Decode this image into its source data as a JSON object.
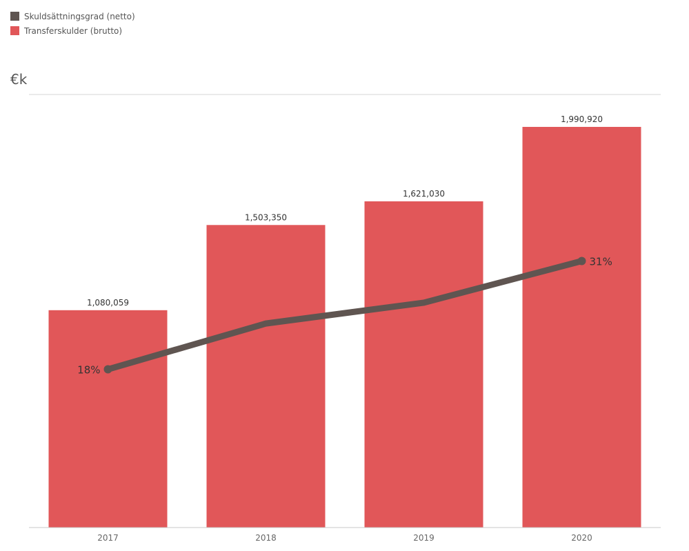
{
  "chart_data": {
    "type": "bar",
    "title": "",
    "unit_label": "€k",
    "categories": [
      "2017",
      "2018",
      "2019",
      "2020"
    ],
    "series": [
      {
        "name": "Transferskulder (brutto)",
        "type": "bar",
        "color": "#e15759",
        "values": [
          1080059,
          1503350,
          1621030,
          1990920
        ],
        "labels": [
          "1,080,059",
          "1,503,350",
          "1,621,030",
          "1,990,920"
        ]
      },
      {
        "name": "Skuldsättningsgrad (netto)",
        "type": "line",
        "color": "#5f5551",
        "values": [
          18,
          23.5,
          26,
          31
        ],
        "labels": [
          "18%",
          "",
          "",
          "31%"
        ]
      }
    ],
    "legend": [
      {
        "label": "Skuldsättningsgrad (netto)",
        "color": "#5f5551"
      },
      {
        "label": "Transferskulder (brutto)",
        "color": "#e15759"
      }
    ],
    "ylim": [
      0,
      2152000
    ],
    "y2lim": [
      -1,
      51
    ],
    "legend_position": "top-left",
    "grid": false
  }
}
